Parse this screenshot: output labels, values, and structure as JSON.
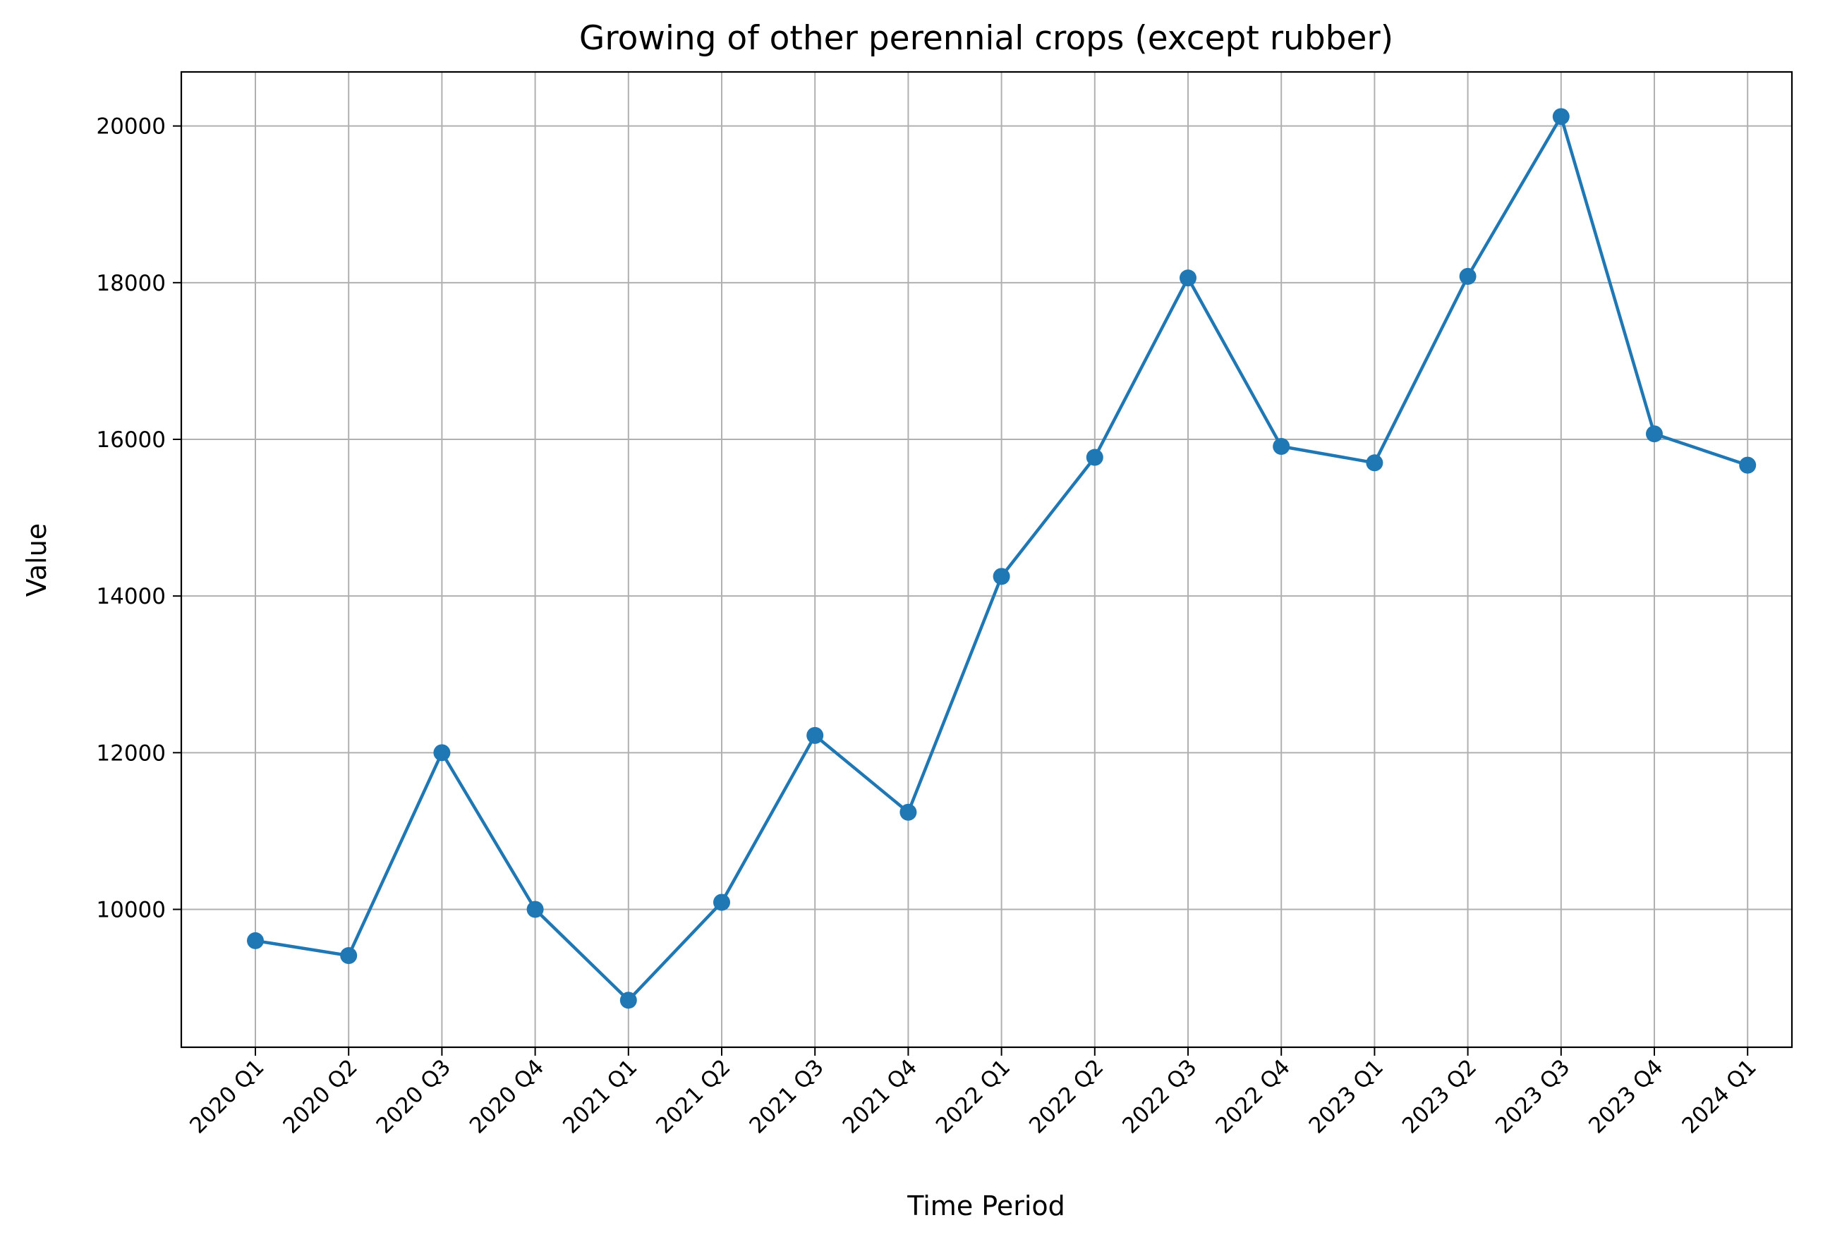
{
  "chart_data": {
    "type": "line",
    "title": "Growing of other perennial crops (except rubber)",
    "xlabel": "Time Period",
    "ylabel": "Value",
    "categories": [
      "2020 Q1",
      "2020 Q2",
      "2020 Q3",
      "2020 Q4",
      "2021 Q1",
      "2021 Q2",
      "2021 Q3",
      "2021 Q4",
      "2022 Q1",
      "2022 Q2",
      "2022 Q3",
      "2022 Q4",
      "2023 Q1",
      "2023 Q2",
      "2023 Q3",
      "2023 Q4",
      "2024 Q1"
    ],
    "series": [
      {
        "values": [
          9600,
          9410,
          12000,
          10000,
          8840,
          10090,
          12220,
          11240,
          14250,
          15770,
          18060,
          15910,
          15700,
          18080,
          20120,
          16070,
          15670
        ],
        "color": "#1f77b4"
      }
    ],
    "ylim": [
      8240,
      20690
    ],
    "yticks": [
      10000,
      12000,
      14000,
      16000,
      18000,
      20000
    ],
    "grid": true,
    "legend": "none"
  }
}
